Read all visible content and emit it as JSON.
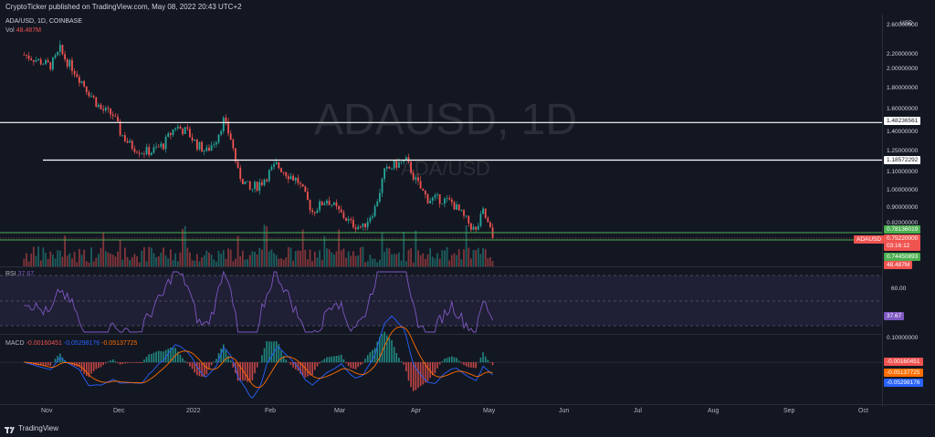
{
  "header": {
    "published": "CryptoTicker published on TradingView.com, May 08, 2022 20:43 UTC+2"
  },
  "legend": {
    "symbol": "ADA/USD, 1D, COINBASE",
    "vol_label": "Vol",
    "vol_value": "48.487M",
    "rsi_label": "RSI",
    "rsi_value": "37.67",
    "macd_label": "MACD",
    "macd_v1": "-0.00160451",
    "macd_v2": "-0.05298176",
    "macd_v3": "-0.05137725"
  },
  "watermark": {
    "main": "ADAUSD, 1D",
    "sub": "ADA/USD"
  },
  "price_axis": {
    "currency": "USD",
    "ticks": [
      "2.60000000",
      "2.20000000",
      "2.00000000",
      "1.80000000",
      "1.60000000",
      "1.40000000",
      "1.25000000",
      "1.10000000",
      "1.00000000",
      "0.90000000",
      "0.82000000"
    ],
    "rsi_ticks": [
      "60.00"
    ],
    "macd_ticks": [
      "0.10000000"
    ]
  },
  "tags": {
    "line_high": "1.48236561",
    "line_mid": "1.18572292",
    "zone_top": "0.78136019",
    "last_price": "0.75220000",
    "countdown": "03:16:12",
    "zone_bottom": "0.74450893",
    "vol_tag": "48.487M",
    "symbol_tag": "ADAUSD",
    "rsi_tag": "37.67",
    "macd_tag1": "-0.00160451",
    "macd_tag2": "-0.05137725",
    "macd_tag3": "-0.05298176"
  },
  "x_axis": [
    "Nov",
    "Dec",
    "2022",
    "Feb",
    "Mar",
    "Apr",
    "May",
    "Jun",
    "Jul",
    "Aug",
    "Sep",
    "Oct"
  ],
  "footer": {
    "brand": "TradingView"
  },
  "colors": {
    "up": "#26a69a",
    "down": "#ef5350",
    "rsi": "#7e57c2",
    "macd": "#2962ff",
    "signal": "#ff6d00",
    "zone": "#4caf50"
  },
  "chart_data": {
    "type": "candlestick",
    "symbol": "ADA/USD",
    "interval": "1D",
    "exchange": "COINBASE",
    "horizontal_lines": [
      1.48236561,
      1.18572292
    ],
    "support_zone": [
      0.74450893,
      0.78136019
    ],
    "last_price": 0.7522,
    "price_path": [
      [
        "2021-10-25",
        2.2
      ],
      [
        "2021-11-01",
        2.1
      ],
      [
        "2021-11-05",
        2.05
      ],
      [
        "2021-11-09",
        2.25
      ],
      [
        "2021-11-12",
        2.1
      ],
      [
        "2021-11-16",
        1.95
      ],
      [
        "2021-11-20",
        1.8
      ],
      [
        "2021-11-26",
        1.6
      ],
      [
        "2021-12-01",
        1.55
      ],
      [
        "2021-12-04",
        1.4
      ],
      [
        "2021-12-08",
        1.3
      ],
      [
        "2021-12-13",
        1.25
      ],
      [
        "2021-12-17",
        1.25
      ],
      [
        "2021-12-22",
        1.3
      ],
      [
        "2021-12-27",
        1.45
      ],
      [
        "2022-01-01",
        1.4
      ],
      [
        "2022-01-05",
        1.3
      ],
      [
        "2022-01-09",
        1.25
      ],
      [
        "2022-01-13",
        1.35
      ],
      [
        "2022-01-16",
        1.5
      ],
      [
        "2022-01-19",
        1.35
      ],
      [
        "2022-01-22",
        1.1
      ],
      [
        "2022-01-27",
        1.0
      ],
      [
        "2022-02-01",
        1.05
      ],
      [
        "2022-02-07",
        1.15
      ],
      [
        "2022-02-11",
        1.1
      ],
      [
        "2022-02-16",
        1.05
      ],
      [
        "2022-02-22",
        0.88
      ],
      [
        "2022-02-28",
        0.95
      ],
      [
        "2022-03-05",
        0.88
      ],
      [
        "2022-03-10",
        0.82
      ],
      [
        "2022-03-15",
        0.8
      ],
      [
        "2022-03-20",
        0.9
      ],
      [
        "2022-03-24",
        1.1
      ],
      [
        "2022-03-28",
        1.15
      ],
      [
        "2022-04-02",
        1.18
      ],
      [
        "2022-04-06",
        1.05
      ],
      [
        "2022-04-11",
        0.95
      ],
      [
        "2022-04-16",
        0.95
      ],
      [
        "2022-04-21",
        0.93
      ],
      [
        "2022-04-26",
        0.85
      ],
      [
        "2022-05-01",
        0.78
      ],
      [
        "2022-05-04",
        0.88
      ],
      [
        "2022-05-08",
        0.7522
      ]
    ],
    "rsi_level": 37.67,
    "macd": {
      "macd": -0.05298176,
      "signal": -0.05137725,
      "histogram": -0.00160451
    },
    "x_ticks": [
      "Nov",
      "Dec",
      "2022",
      "Feb",
      "Mar",
      "Apr",
      "May",
      "Jun",
      "Jul",
      "Aug",
      "Sep",
      "Oct"
    ]
  }
}
